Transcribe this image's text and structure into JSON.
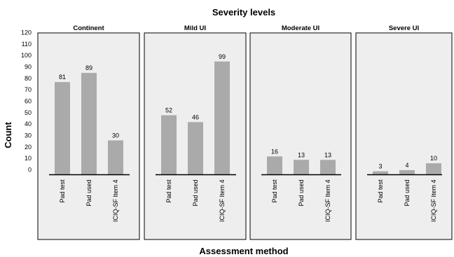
{
  "chart_data": {
    "type": "bar",
    "title": "Severity levels",
    "xlabel": "Assessment method",
    "ylabel": "Count",
    "ylim": [
      0,
      120
    ],
    "yticks": [
      0,
      10,
      20,
      30,
      40,
      50,
      60,
      70,
      80,
      90,
      100,
      110,
      120
    ],
    "categories": [
      "Pad test",
      "Pad used",
      "ICIQ-SF Item 4"
    ],
    "panels": [
      {
        "name": "Continent",
        "values": [
          81,
          89,
          30
        ]
      },
      {
        "name": "Mild UI",
        "values": [
          52,
          46,
          99
        ]
      },
      {
        "name": "Moderate UI",
        "values": [
          16,
          13,
          13
        ]
      },
      {
        "name": "Severe UI",
        "values": [
          3,
          4,
          10
        ]
      }
    ],
    "colors": {
      "bar": "#aaaaaa",
      "panel_fill": "#eeeeee",
      "panel_border": "#000000"
    }
  }
}
